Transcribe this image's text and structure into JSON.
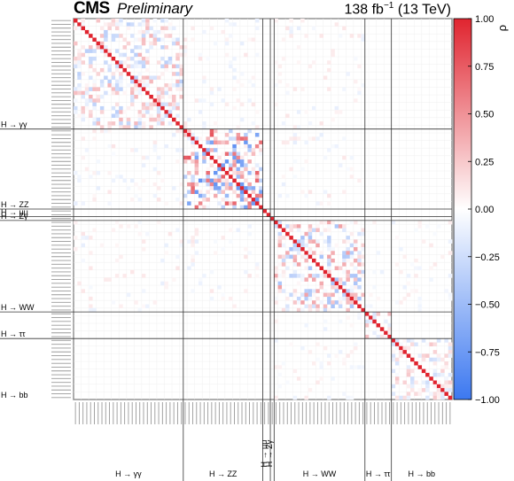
{
  "header": {
    "experiment": "CMS",
    "status": "Preliminary",
    "lumi_value": "138 fb",
    "lumi_exp": "−1",
    "energy": "(13 TeV)"
  },
  "chart_data": {
    "type": "heatmap",
    "colorbar": {
      "label": "ρ",
      "range": [
        -1.0,
        1.0
      ],
      "ticks": [
        "1.00",
        "0.75",
        "0.50",
        "0.25",
        "0.00",
        "−0.25",
        "−0.50",
        "−0.75",
        "−1.00"
      ],
      "tick_values": [
        1.0,
        0.75,
        0.5,
        0.25,
        0.0,
        -0.25,
        -0.5,
        -0.75,
        -1.0
      ],
      "colors": {
        "neg": "#3c78f0",
        "zero": "#ffffff",
        "pos": "#e0242f"
      }
    },
    "n_parameters": 100,
    "diagonal": 1.0,
    "groups": [
      {
        "name": "H → γγ",
        "start": 0,
        "end": 29
      },
      {
        "name": "H → ZZ",
        "start": 29,
        "end": 50
      },
      {
        "name": "H → μμ",
        "start": 50,
        "end": 52
      },
      {
        "name": "H → Zγ",
        "start": 52,
        "end": 53
      },
      {
        "name": "H → WW",
        "start": 53,
        "end": 77
      },
      {
        "name": "H → ττ",
        "start": 77,
        "end": 84
      },
      {
        "name": "H → bb",
        "start": 84,
        "end": 100
      }
    ],
    "blocks": [
      {
        "rows": [
          0,
          29
        ],
        "cols": [
          0,
          29
        ],
        "pattern": "checker",
        "amp": 0.35
      },
      {
        "rows": [
          29,
          50
        ],
        "cols": [
          29,
          50
        ],
        "pattern": "checker",
        "amp": 0.8
      },
      {
        "rows": [
          53,
          77
        ],
        "cols": [
          53,
          77
        ],
        "pattern": "checker",
        "amp": 0.45
      },
      {
        "rows": [
          77,
          84
        ],
        "cols": [
          77,
          84
        ],
        "pattern": "checker",
        "amp": 0.3
      },
      {
        "rows": [
          84,
          100
        ],
        "cols": [
          84,
          100
        ],
        "pattern": "checker",
        "amp": 0.25
      },
      {
        "rows": [
          0,
          29
        ],
        "cols": [
          29,
          50
        ],
        "pattern": "sparse",
        "amp": 0.12
      },
      {
        "rows": [
          0,
          29
        ],
        "cols": [
          53,
          77
        ],
        "pattern": "sparse",
        "amp": 0.12
      },
      {
        "rows": [
          29,
          50
        ],
        "cols": [
          53,
          77
        ],
        "pattern": "sparse",
        "amp": 0.12
      },
      {
        "rows": [
          53,
          77
        ],
        "cols": [
          77,
          100
        ],
        "pattern": "sparse",
        "amp": 0.1
      }
    ]
  }
}
